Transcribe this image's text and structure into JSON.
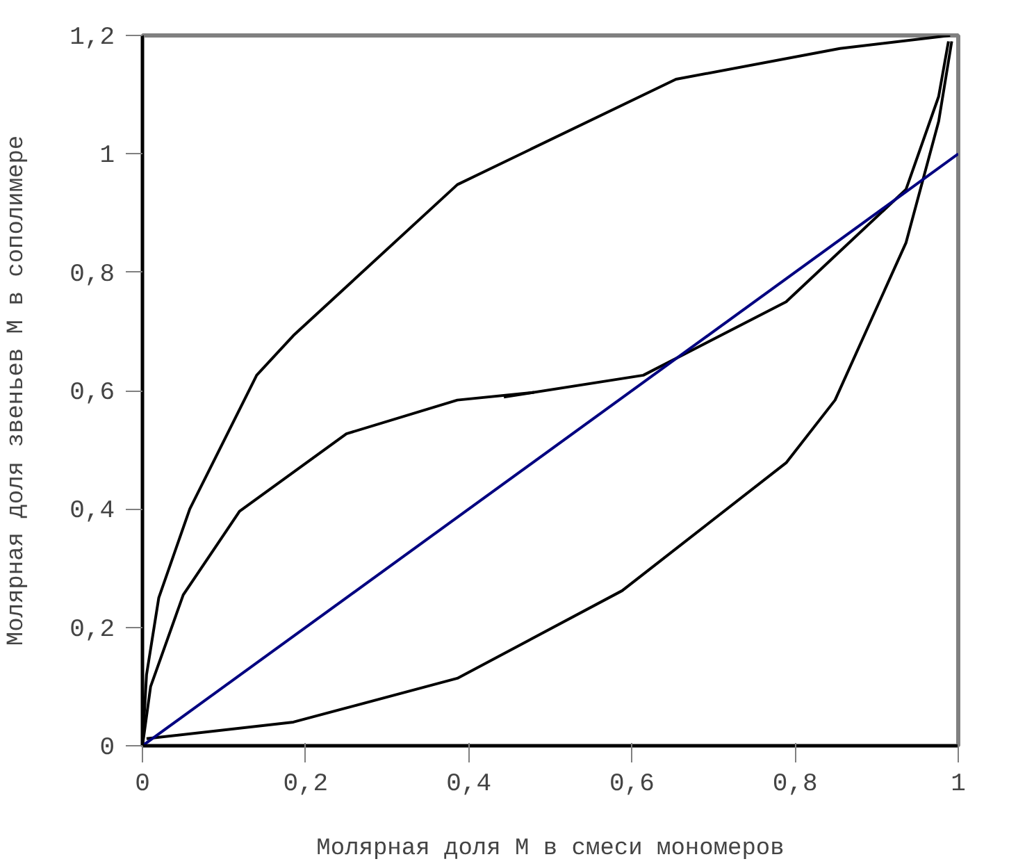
{
  "chart_data": {
    "type": "line",
    "xlabel": "Молярная доля М в смеси мономеров",
    "ylabel": "Молярная доля звеньев М в сополимере",
    "series": [
      {
        "color": "#000000",
        "x": [
          0.0,
          0.005,
          0.02,
          0.058,
          0.14,
          0.185,
          0.386,
          0.654,
          0.855,
          0.99
        ],
        "values": [
          0.0,
          0.12,
          0.25,
          0.4,
          0.626,
          0.693,
          0.948,
          1.126,
          1.178,
          1.2
        ]
      },
      {
        "color": "#000000",
        "x": [
          0.0,
          0.01,
          0.05,
          0.119,
          0.25,
          0.386,
          0.48
        ],
        "values": [
          0.0,
          0.1,
          0.255,
          0.396,
          0.527,
          0.584,
          0.597
        ]
      },
      {
        "color": "#000000",
        "x": [
          0.443,
          0.614,
          0.789,
          0.936,
          0.976,
          0.988
        ],
        "values": [
          0.589,
          0.626,
          0.75,
          0.94,
          1.097,
          1.19
        ]
      },
      {
        "color": "#000000",
        "x": [
          0.005,
          0.185,
          0.386,
          0.588,
          0.789,
          0.849,
          0.936,
          0.976,
          0.992
        ],
        "values": [
          0.012,
          0.04,
          0.114,
          0.262,
          0.478,
          0.584,
          0.85,
          1.055,
          1.19
        ]
      },
      {
        "color": "#000080",
        "x": [
          0.0,
          1.0
        ],
        "values": [
          0.0,
          1.0
        ]
      }
    ],
    "xlim": [
      0,
      1
    ],
    "ylim": [
      0,
      1.2
    ],
    "xticks": [
      0,
      {
        "value": 0.2,
        "label": "0,2"
      },
      {
        "value": 0.4,
        "label": "0,4"
      },
      {
        "value": 0.6,
        "label": "0,6"
      },
      {
        "value": 0.8,
        "label": "0,8"
      },
      1
    ],
    "yticks": [
      0,
      {
        "value": 0.2,
        "label": "0,2"
      },
      {
        "value": 0.4,
        "label": "0,4"
      },
      {
        "value": 0.6,
        "label": "0,6"
      },
      {
        "value": 0.8,
        "label": "0,8"
      },
      1,
      {
        "value": 1.2,
        "label": "1,2"
      }
    ],
    "grid": false,
    "marker": "none",
    "line_style": "solid"
  }
}
